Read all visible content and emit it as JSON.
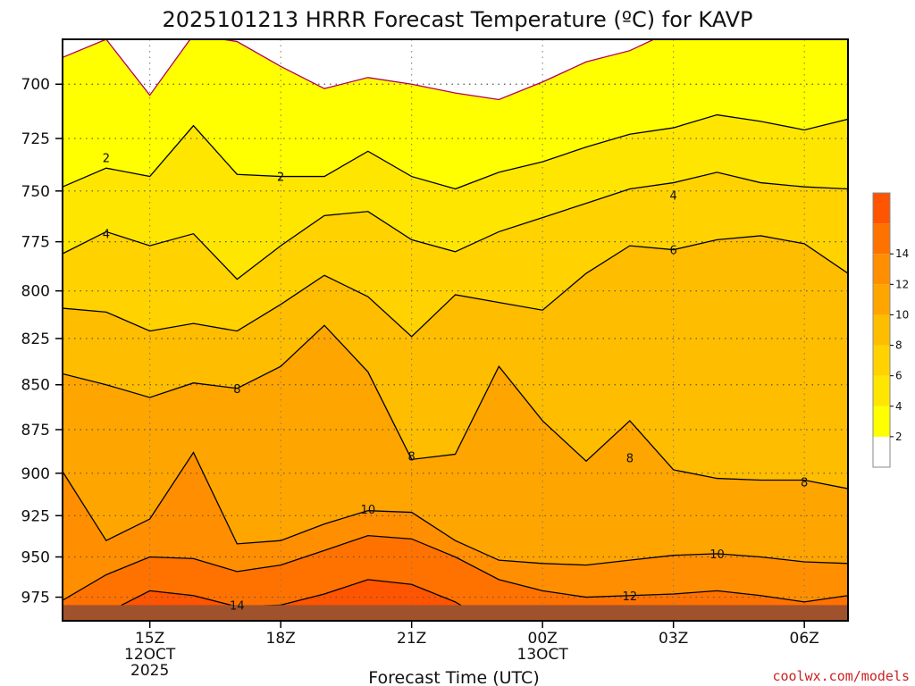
{
  "chart_data": {
    "type": "contour",
    "title": "2025101213 HRRR Forecast Temperature (ºC) for KAVP",
    "xlabel": "Forecast Time (UTC)",
    "ylabel": "",
    "credit": "coolwx.com/models",
    "x_ticks": [
      {
        "hour": 15,
        "label": "15Z",
        "date": "12OCT",
        "year": "2025"
      },
      {
        "hour": 18,
        "label": "18Z",
        "date": "",
        "year": ""
      },
      {
        "hour": 21,
        "label": "21Z",
        "date": "",
        "year": ""
      },
      {
        "hour": 24,
        "label": "00Z",
        "date": "13OCT",
        "year": ""
      },
      {
        "hour": 27,
        "label": "03Z",
        "date": "",
        "year": ""
      },
      {
        "hour": 30,
        "label": "06Z",
        "date": "",
        "year": ""
      }
    ],
    "xlim": [
      13,
      31
    ],
    "ylim": [
      680,
      990
    ],
    "y_scale": "log-pressure",
    "y_ticks": [
      700,
      725,
      750,
      775,
      800,
      825,
      850,
      875,
      900,
      925,
      950,
      975
    ],
    "grid": "dotted",
    "colorbar": {
      "levels": [
        2,
        4,
        6,
        8,
        10,
        12,
        14
      ],
      "colors": [
        "#ffffff",
        "#ffff00",
        "#ffe600",
        "#ffd200",
        "#ffbd00",
        "#ffa500",
        "#ff8f00",
        "#ff7200",
        "#ff5400"
      ]
    },
    "hours": [
      13,
      14,
      15,
      16,
      17,
      18,
      19,
      20,
      21,
      22,
      23,
      24,
      25,
      26,
      27,
      28,
      29,
      30,
      31
    ],
    "contours": [
      {
        "level": 0,
        "color": "#b00060",
        "pressures": [
          688,
          680,
          705,
          678,
          681,
          692,
          702,
          697,
          700,
          704,
          707,
          699,
          690,
          685,
          676,
          672,
          670,
          672,
          674
        ]
      },
      {
        "level": 2,
        "color": "#000000",
        "pressures": [
          748,
          739,
          743,
          719,
          742,
          743,
          743,
          731,
          743,
          749,
          741,
          736,
          729,
          723,
          720,
          714,
          717,
          721,
          716
        ]
      },
      {
        "level": 4,
        "color": "#000000",
        "pressures": [
          781,
          770,
          777,
          771,
          794,
          777,
          762,
          760,
          774,
          780,
          770,
          763,
          756,
          749,
          746,
          741,
          746,
          748,
          749
        ]
      },
      {
        "level": 6,
        "color": "#000000",
        "pressures": [
          809,
          811,
          821,
          817,
          821,
          807,
          792,
          803,
          824,
          802,
          806,
          810,
          791,
          777,
          779,
          774,
          772,
          776,
          791
        ]
      },
      {
        "level": 8,
        "color": "#000000",
        "pressures": [
          844,
          850,
          857,
          849,
          852,
          840,
          818,
          843,
          892,
          889,
          840,
          870,
          893,
          870,
          898,
          903,
          904,
          904,
          909
        ]
      },
      {
        "level": 10,
        "color": "#000000",
        "pressures": [
          899,
          940,
          927,
          888,
          942,
          940,
          930,
          922,
          923,
          940,
          952,
          954,
          955,
          952,
          949,
          948,
          950,
          953,
          954
        ]
      },
      {
        "level": 12,
        "color": "#000000",
        "pressures": [
          977,
          961,
          950,
          951,
          959,
          955,
          946,
          937,
          939,
          950,
          964,
          971,
          975,
          974,
          973,
          971,
          974,
          978,
          974
        ]
      },
      {
        "level": 14,
        "color": "#000000",
        "pressures": [
          995,
          985,
          971,
          974,
          981,
          980,
          973,
          964,
          967,
          978,
          995,
          995,
          995,
          995,
          995,
          995,
          995,
          995,
          995
        ]
      }
    ],
    "contour_labels": [
      {
        "text": "2",
        "hour": 14,
        "pressure": 734
      },
      {
        "text": "2",
        "hour": 18,
        "pressure": 743
      },
      {
        "text": "4",
        "hour": 14,
        "pressure": 771
      },
      {
        "text": "4",
        "hour": 27,
        "pressure": 752
      },
      {
        "text": "6",
        "hour": 27,
        "pressure": 779
      },
      {
        "text": "8",
        "hour": 17,
        "pressure": 852
      },
      {
        "text": "8",
        "hour": 21,
        "pressure": 890
      },
      {
        "text": "8",
        "hour": 26,
        "pressure": 891
      },
      {
        "text": "8",
        "hour": 30,
        "pressure": 905
      },
      {
        "text": "10",
        "hour": 20,
        "pressure": 921
      },
      {
        "text": "10",
        "hour": 28,
        "pressure": 948
      },
      {
        "text": "12",
        "hour": 26,
        "pressure": 974
      },
      {
        "text": "14",
        "hour": 17,
        "pressure": 980
      }
    ],
    "ground_pressure": 980
  }
}
